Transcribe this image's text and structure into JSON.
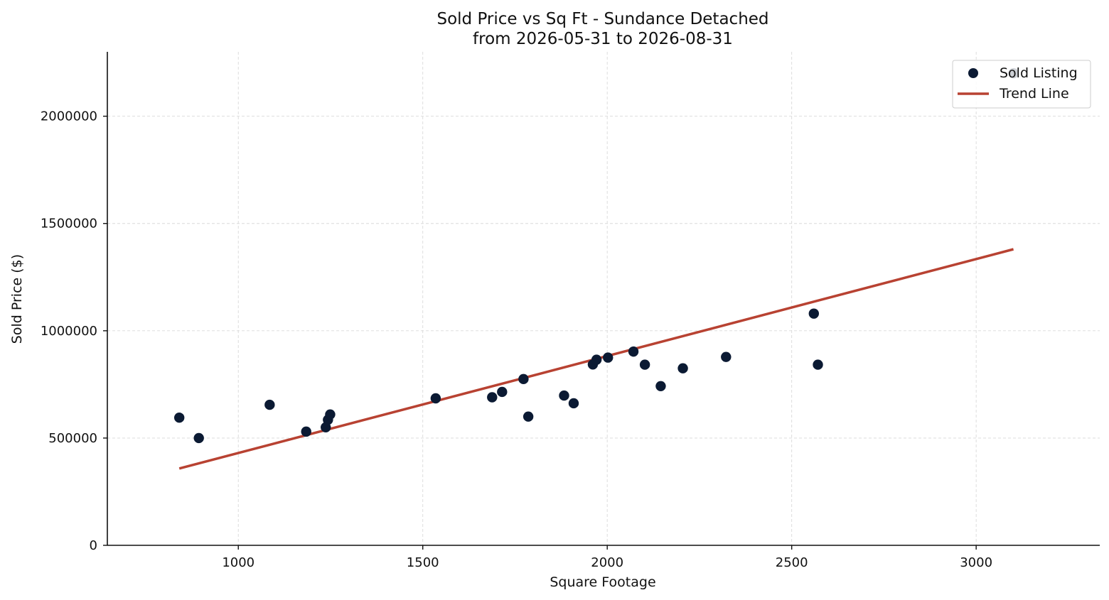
{
  "chart_data": {
    "type": "scatter",
    "title": "Sold Price vs Sq Ft - Sundance Detached",
    "subtitle": "from 2026-05-31 to 2026-08-31",
    "xlabel": "Square Footage",
    "ylabel": "Sold Price ($)",
    "xlim": [
      645,
      3335
    ],
    "ylim": [
      0,
      2300000
    ],
    "xticks": [
      1000,
      1500,
      2000,
      2500,
      3000
    ],
    "yticks": [
      0,
      500000,
      1000000,
      1500000,
      2000000
    ],
    "xtick_labels": [
      "1000",
      "1500",
      "2000",
      "2500",
      "3000"
    ],
    "ytick_labels": [
      "0",
      "500000",
      "1000000",
      "1500000",
      "2000000"
    ],
    "grid": true,
    "legend_position": "top-right",
    "colors": {
      "points": "#0b1a33",
      "trend": "#b84232"
    },
    "series": [
      {
        "name": "Sold Listing",
        "type": "scatter",
        "points": [
          {
            "x": 840,
            "y": 595000
          },
          {
            "x": 893,
            "y": 500000
          },
          {
            "x": 1085,
            "y": 655000
          },
          {
            "x": 1184,
            "y": 530000
          },
          {
            "x": 1237,
            "y": 550000
          },
          {
            "x": 1243,
            "y": 585000
          },
          {
            "x": 1249,
            "y": 610000
          },
          {
            "x": 1535,
            "y": 685000
          },
          {
            "x": 1688,
            "y": 690000
          },
          {
            "x": 1715,
            "y": 715000
          },
          {
            "x": 1773,
            "y": 775000
          },
          {
            "x": 1786,
            "y": 600000
          },
          {
            "x": 1883,
            "y": 698000
          },
          {
            "x": 1909,
            "y": 662000
          },
          {
            "x": 1961,
            "y": 843000
          },
          {
            "x": 1971,
            "y": 865000
          },
          {
            "x": 2002,
            "y": 875000
          },
          {
            "x": 2071,
            "y": 903000
          },
          {
            "x": 2102,
            "y": 842000
          },
          {
            "x": 2145,
            "y": 742000
          },
          {
            "x": 2205,
            "y": 825000
          },
          {
            "x": 2322,
            "y": 878000
          },
          {
            "x": 2560,
            "y": 1080000
          },
          {
            "x": 2571,
            "y": 842000
          },
          {
            "x": 3101,
            "y": 2200000
          }
        ]
      },
      {
        "name": "Trend Line",
        "type": "line",
        "points": [
          {
            "x": 840,
            "y": 358000
          },
          {
            "x": 3101,
            "y": 1380000
          }
        ]
      }
    ]
  }
}
